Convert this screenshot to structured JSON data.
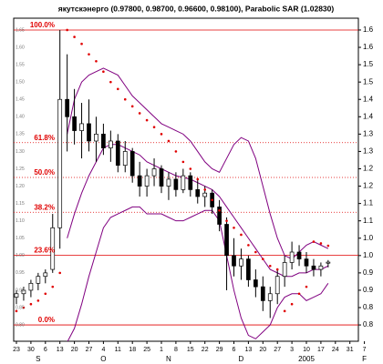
{
  "chart_data": {
    "type": "candlestick",
    "title": "якутскэнерго (0.97800, 0.98700, 0.96600, 0.98100), Parabolic SAR (1.02830)",
    "categories": [
      "23",
      null,
      "30",
      null,
      "6",
      null,
      "13",
      null,
      "20",
      null,
      "27",
      null,
      "4",
      null,
      "11",
      null,
      "18",
      null,
      "25",
      null,
      "1",
      null,
      "8",
      null,
      "15",
      null,
      "22",
      null,
      "29",
      null,
      "6",
      null,
      "13",
      null,
      "20",
      null,
      "27",
      null,
      "3",
      null,
      "10",
      null,
      "17",
      null,
      "24",
      null,
      "31",
      null,
      "7"
    ],
    "months": [
      null,
      null,
      null,
      "S",
      null,
      null,
      null,
      null,
      null,
      null,
      null,
      null,
      "O",
      null,
      null,
      null,
      null,
      null,
      null,
      null,
      null,
      "N",
      null,
      null,
      null,
      null,
      null,
      null,
      null,
      null,
      null,
      "D",
      null,
      null,
      null,
      null,
      null,
      null,
      null,
      null,
      "2005",
      null,
      null,
      null,
      null,
      null,
      null,
      null,
      "F"
    ],
    "open": [
      0.88,
      0.89,
      0.9,
      0.92,
      0.94,
      0.96,
      1.08,
      1.45,
      1.4,
      1.36,
      1.38,
      1.33,
      1.35,
      1.31,
      1.33,
      1.26,
      1.3,
      1.23,
      1.2,
      1.23,
      1.25,
      1.2,
      1.22,
      1.19,
      1.23,
      1.19,
      1.17,
      1.18,
      1.14,
      1.09,
      1.0,
      0.97,
      0.99,
      0.93,
      0.91,
      0.87,
      0.89,
      0.94,
      0.98,
      1.01,
      0.99,
      0.97,
      0.96,
      0.978,
      null,
      null,
      null,
      null,
      null
    ],
    "high": [
      0.9,
      0.91,
      0.93,
      0.95,
      0.96,
      1.12,
      1.65,
      1.58,
      1.48,
      1.44,
      1.45,
      1.4,
      1.38,
      1.36,
      1.35,
      1.33,
      1.31,
      1.27,
      1.25,
      1.28,
      1.26,
      1.24,
      1.24,
      1.25,
      1.24,
      1.22,
      1.2,
      1.19,
      1.16,
      1.11,
      1.05,
      1.02,
      1.0,
      0.96,
      0.94,
      0.91,
      0.96,
      1.0,
      1.04,
      1.03,
      1.01,
      0.99,
      0.98,
      0.987,
      null,
      null,
      null,
      null,
      null
    ],
    "low": [
      0.86,
      0.87,
      0.88,
      0.9,
      0.92,
      0.95,
      1.02,
      1.3,
      1.32,
      1.28,
      1.3,
      1.27,
      1.29,
      1.27,
      1.24,
      1.24,
      1.21,
      1.17,
      1.17,
      1.2,
      1.18,
      1.16,
      1.17,
      1.18,
      1.17,
      1.15,
      1.14,
      1.12,
      1.07,
      0.9,
      0.94,
      0.93,
      0.91,
      0.88,
      0.84,
      0.82,
      0.86,
      0.91,
      0.96,
      0.97,
      0.95,
      0.94,
      0.94,
      0.966,
      null,
      null,
      null,
      null,
      null
    ],
    "close": [
      0.89,
      0.9,
      0.92,
      0.94,
      0.95,
      1.08,
      1.45,
      1.4,
      1.36,
      1.38,
      1.33,
      1.35,
      1.31,
      1.33,
      1.26,
      1.3,
      1.23,
      1.2,
      1.23,
      1.25,
      1.2,
      1.22,
      1.19,
      1.23,
      1.19,
      1.17,
      1.18,
      1.14,
      1.09,
      1.0,
      0.97,
      0.99,
      0.93,
      0.91,
      0.87,
      0.89,
      0.94,
      0.98,
      1.01,
      0.99,
      0.97,
      0.96,
      0.97,
      0.981,
      null,
      null,
      null,
      null,
      null
    ],
    "bands": [
      {
        "name": "upper",
        "color": "#800080",
        "values": [
          null,
          null,
          null,
          null,
          null,
          null,
          null,
          1.35,
          1.45,
          1.5,
          1.52,
          1.53,
          1.54,
          1.53,
          1.52,
          1.49,
          1.46,
          1.44,
          1.42,
          1.4,
          1.38,
          1.37,
          1.36,
          1.35,
          1.33,
          1.3,
          1.27,
          1.25,
          1.24,
          1.28,
          1.32,
          1.34,
          1.33,
          1.28,
          1.2,
          1.12,
          1.05,
          1.0,
          0.99,
          1.01,
          1.03,
          1.04,
          1.03,
          1.02,
          null,
          null,
          null,
          null,
          null
        ]
      },
      {
        "name": "middle",
        "color": "#800080",
        "values": [
          null,
          null,
          null,
          null,
          null,
          null,
          null,
          1.05,
          1.12,
          1.18,
          1.23,
          1.27,
          1.31,
          1.32,
          1.32,
          1.31,
          1.3,
          1.29,
          1.27,
          1.26,
          1.25,
          1.24,
          1.23,
          1.225,
          1.22,
          1.21,
          1.2,
          1.19,
          1.17,
          1.14,
          1.11,
          1.08,
          1.05,
          1.02,
          0.99,
          0.96,
          0.95,
          0.94,
          0.94,
          0.95,
          0.95,
          0.96,
          0.96,
          0.97,
          null,
          null,
          null,
          null,
          null
        ]
      },
      {
        "name": "lower",
        "color": "#800080",
        "values": [
          null,
          null,
          null,
          null,
          null,
          null,
          null,
          0.75,
          0.79,
          0.86,
          0.94,
          1.01,
          1.08,
          1.11,
          1.12,
          1.13,
          1.14,
          1.14,
          1.12,
          1.12,
          1.12,
          1.11,
          1.1,
          1.1,
          1.11,
          1.12,
          1.13,
          1.13,
          1.1,
          1.0,
          0.9,
          0.82,
          0.77,
          0.76,
          0.78,
          0.8,
          0.85,
          0.88,
          0.89,
          0.89,
          0.87,
          0.88,
          0.89,
          0.92,
          null,
          null,
          null,
          null,
          null
        ]
      }
    ],
    "sar": {
      "color": "#e00000",
      "values": [
        0.84,
        0.85,
        0.86,
        0.87,
        0.89,
        0.91,
        0.95,
        1.65,
        1.63,
        1.61,
        1.58,
        1.56,
        1.53,
        1.5,
        1.48,
        1.45,
        1.43,
        1.41,
        1.39,
        1.37,
        1.35,
        1.33,
        1.3,
        1.27,
        1.25,
        1.22,
        1.19,
        1.16,
        1.13,
        1.1,
        1.08,
        1.06,
        1.03,
        1.01,
        0.99,
        0.97,
        0.96,
        0.84,
        0.86,
        0.89,
        0.91,
        1.04,
        1.035,
        1.0283,
        null,
        null,
        null,
        null,
        null
      ]
    },
    "fib": {
      "color": "#e00000",
      "levels": [
        {
          "label": "100.0%",
          "value": 1.65
        },
        {
          "label": "61.8%",
          "value": 1.3253
        },
        {
          "label": "50.0%",
          "value": 1.225
        },
        {
          "label": "38.2%",
          "value": 1.1247
        },
        {
          "label": "23.6%",
          "value": 1.0006
        },
        {
          "label": "0.0%",
          "value": 0.8
        }
      ]
    },
    "ylim": [
      0.753,
      1.684
    ],
    "yticks": [
      {
        "value": 0.8,
        "label": "0.8"
      },
      {
        "value": 0.85,
        "label": "0.8"
      },
      {
        "value": 0.9,
        "label": "0.9"
      },
      {
        "value": 0.95,
        "label": "0.9"
      },
      {
        "value": 1.0,
        "label": "1.0"
      },
      {
        "value": 1.05,
        "label": "1.0"
      },
      {
        "value": 1.1,
        "label": "1.1"
      },
      {
        "value": 1.15,
        "label": "1.1"
      },
      {
        "value": 1.2,
        "label": "1.2"
      },
      {
        "value": 1.25,
        "label": "1.2"
      },
      {
        "value": 1.3,
        "label": "1.3"
      },
      {
        "value": 1.35,
        "label": "1.3"
      },
      {
        "value": 1.4,
        "label": "1.4"
      },
      {
        "value": 1.45,
        "label": "1.4"
      },
      {
        "value": 1.5,
        "label": "1.5"
      },
      {
        "value": 1.55,
        "label": "1.5"
      },
      {
        "value": 1.6,
        "label": "1.6"
      },
      {
        "value": 1.65,
        "label": "1.6"
      }
    ],
    "left_yticks": [
      {
        "value": 0.8,
        "label": "0.80"
      },
      {
        "value": 0.85,
        "label": "0.85"
      },
      {
        "value": 0.9,
        "label": "0.90"
      },
      {
        "value": 0.95,
        "label": "0.95"
      },
      {
        "value": 1.0,
        "label": "1.00"
      },
      {
        "value": 1.05,
        "label": "1.05"
      },
      {
        "value": 1.1,
        "label": "1.10"
      },
      {
        "value": 1.15,
        "label": "1.15"
      },
      {
        "value": 1.2,
        "label": "1.20"
      },
      {
        "value": 1.25,
        "label": "1.25"
      },
      {
        "value": 1.3,
        "label": "1.30"
      },
      {
        "value": 1.35,
        "label": "1.35"
      },
      {
        "value": 1.4,
        "label": "1.40"
      },
      {
        "value": 1.45,
        "label": "1.45"
      },
      {
        "value": 1.5,
        "label": "1.50"
      },
      {
        "value": 1.55,
        "label": "1.55"
      },
      {
        "value": 1.6,
        "label": "1.60"
      },
      {
        "value": 1.65,
        "label": "1.65"
      }
    ]
  }
}
